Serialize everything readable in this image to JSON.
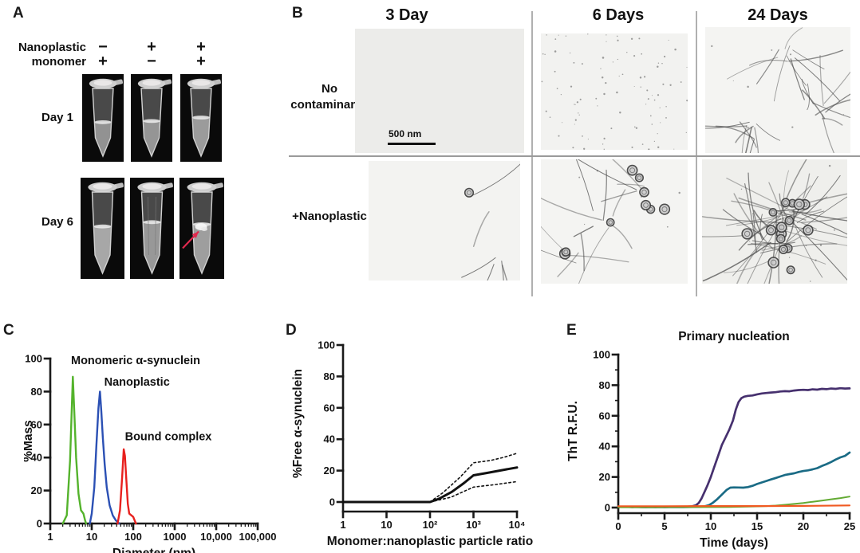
{
  "figure": {
    "panel_a_label": "A",
    "panel_b_label": "B",
    "panel_c_label": "C",
    "panel_d_label": "D",
    "panel_e_label": "E"
  },
  "panel_a": {
    "row1_label": "Nanoplastic",
    "row2_label": "monomer",
    "signs": [
      [
        "−",
        "+"
      ],
      [
        "+",
        "−"
      ],
      [
        "+",
        "+"
      ]
    ],
    "day1_label": "Day 1",
    "day6_label": "Day 6",
    "arrow_color": "#e0294e",
    "tubes": {
      "day1": [
        {
          "fill": 0.42,
          "turbidity": 0.1
        },
        {
          "fill": 0.44,
          "turbidity": 0.15
        },
        {
          "fill": 0.5,
          "turbidity": 0.25
        }
      ],
      "day6": [
        {
          "fill": 0.52,
          "turbidity": 0.45
        },
        {
          "fill": 0.58,
          "turbidity": 0.2,
          "striations": true
        },
        {
          "fill": 0.55,
          "turbidity": 0.3,
          "aggregate": true,
          "arrow": true
        }
      ]
    }
  },
  "panel_b": {
    "col_headers": [
      "3 Day",
      "6 Days",
      "24  Days"
    ],
    "row1_header_line1": "No",
    "row1_header_line2": "contaminants",
    "row2_header": "+Nanoplastic",
    "scale_bar_label": "500 nm",
    "micrographs": {
      "r1c1": {
        "bg": "#ececea",
        "fibrils": 0,
        "spheres": 0,
        "specks": 0,
        "clusters": 0,
        "seed": 11
      },
      "r1c2": {
        "bg": "#f2f2f0",
        "fibrils": 0,
        "spheres": 0,
        "specks": 95,
        "clusters": 0,
        "seed": 22
      },
      "r1c3": {
        "bg": "#f4f4f2",
        "fibrils": 30,
        "spheres": 0,
        "specks": 8,
        "clusters": 3,
        "seed": 33
      },
      "r2c1": {
        "bg": "#f3f3f1",
        "fibrils": 6,
        "spheres": 1,
        "specks": 0,
        "clusters": 2,
        "seed": 47
      },
      "r2c2": {
        "bg": "#f4f4f2",
        "fibrils": 16,
        "spheres": 9,
        "specks": 6,
        "clusters": 3,
        "seed": 55
      },
      "r2c3": {
        "bg": "#efefec",
        "fibrils": 52,
        "spheres": 16,
        "specks": 10,
        "clusters": 5,
        "seed": 66
      }
    }
  },
  "chart_data": [
    {
      "id": "dls-size-distribution",
      "type": "line",
      "xscale": "log",
      "xlim": [
        1,
        100000
      ],
      "ylim": [
        0,
        100
      ],
      "yticks": [
        0,
        20,
        40,
        60,
        80,
        100
      ],
      "xtick_values": [
        1,
        10,
        100,
        1000,
        10000,
        100000
      ],
      "xtick_labels": [
        "1",
        "10",
        "100",
        "1000",
        "10,000",
        "100,000"
      ],
      "xlabel": "Diameter (nm)",
      "ylabel": "%Mass",
      "grid": false,
      "series": [
        {
          "name": "Monomeric α-synuclein",
          "color": "#54b32c",
          "width": 2.4,
          "points": [
            [
              2,
              0
            ],
            [
              2.5,
              5
            ],
            [
              3,
              38
            ],
            [
              3.3,
              70
            ],
            [
              3.5,
              89
            ],
            [
              3.8,
              68
            ],
            [
              4.2,
              40
            ],
            [
              4.8,
              18
            ],
            [
              5.5,
              8
            ],
            [
              6.3,
              6
            ],
            [
              6.9,
              2
            ],
            [
              7.3,
              0
            ]
          ]
        },
        {
          "name": "Nanoplastic",
          "color": "#2b50b4",
          "width": 2.4,
          "points": [
            [
              9,
              0
            ],
            [
              10,
              6
            ],
            [
              11.5,
              22
            ],
            [
              13,
              48
            ],
            [
              14.5,
              70
            ],
            [
              15.8,
              80
            ],
            [
              17,
              68
            ],
            [
              18.5,
              52
            ],
            [
              20.5,
              36
            ],
            [
              23,
              22
            ],
            [
              27,
              11
            ],
            [
              32,
              5
            ],
            [
              38,
              2
            ],
            [
              46,
              0
            ]
          ]
        },
        {
          "name": "Bound complex",
          "color": "#e8211e",
          "width": 2.4,
          "points": [
            [
              42,
              0
            ],
            [
              48,
              8
            ],
            [
              54,
              28
            ],
            [
              59,
              45
            ],
            [
              63,
              41
            ],
            [
              68,
              27
            ],
            [
              74,
              12
            ],
            [
              80,
              6
            ],
            [
              90,
              5
            ],
            [
              100,
              4
            ],
            [
              108,
              2
            ],
            [
              116,
              0
            ]
          ]
        }
      ],
      "annotations": [
        {
          "text": "Monomeric α-synuclein",
          "color": "#54b32c",
          "fx": 0.1,
          "fy": 0.01
        },
        {
          "text": "Nanoplastic",
          "color": "#2b50b4",
          "fx": 0.26,
          "fy": 0.14
        },
        {
          "text": "Bound complex",
          "color": "#c8202e",
          "fx": 0.36,
          "fy": 0.47
        }
      ]
    },
    {
      "id": "free-synuclein-vs-ratio",
      "type": "line",
      "xscale": "log",
      "xlim": [
        1,
        10000
      ],
      "ylim": [
        0,
        100
      ],
      "yticks": [
        0,
        20,
        40,
        60,
        80,
        100
      ],
      "xtick_values": [
        1,
        10,
        100,
        1000,
        10000
      ],
      "xtick_labels": [
        "1",
        "10",
        "10²",
        "10³",
        "10⁴"
      ],
      "xlabel": "Monomer:nanoplastic particle ratio",
      "ylabel": "%Free α-synuclein",
      "grid": false,
      "series": [
        {
          "name": "mean",
          "color": "#111111",
          "width": 3,
          "points": [
            [
              1,
              0
            ],
            [
              10,
              0
            ],
            [
              100,
              0
            ],
            [
              160,
              2
            ],
            [
              320,
              6.5
            ],
            [
              600,
              12
            ],
            [
              1000,
              17
            ],
            [
              2000,
              18.5
            ],
            [
              5000,
              20.5
            ],
            [
              10000,
              22
            ]
          ]
        },
        {
          "name": "upper error (dotted)",
          "color": "#111111",
          "width": 1.6,
          "dash": "2.5 3.2",
          "points": [
            [
              100,
              0
            ],
            [
              200,
              6
            ],
            [
              500,
              16
            ],
            [
              1000,
              25
            ],
            [
              2500,
              26.5
            ],
            [
              5000,
              28.5
            ],
            [
              10000,
              31
            ]
          ]
        },
        {
          "name": "lower error (dotted)",
          "color": "#111111",
          "width": 1.6,
          "dash": "2.5 3.2",
          "points": [
            [
              100,
              0
            ],
            [
              300,
              3
            ],
            [
              1000,
              9.5
            ],
            [
              3000,
              11
            ],
            [
              10000,
              13
            ]
          ]
        }
      ]
    },
    {
      "id": "tht-kinetics",
      "type": "line",
      "title": "Primary nucleation",
      "xscale": "linear",
      "xlim": [
        0,
        25
      ],
      "ylim": [
        0,
        100
      ],
      "yticks": [
        0,
        20,
        40,
        60,
        80,
        100
      ],
      "y_minor_ticks": [
        10,
        30,
        50,
        70,
        90
      ],
      "xtick_values": [
        0,
        5,
        10,
        15,
        20,
        25
      ],
      "xtick_labels": [
        "0",
        "5",
        "10",
        "15",
        "20",
        "25"
      ],
      "x_minor_ticks": [
        2.5,
        7.5,
        12.5,
        17.5,
        22.5
      ],
      "xlabel": "Time (days)",
      "ylabel": "ThT R.F.U.",
      "grid": false,
      "series": [
        {
          "name": "purple condition",
          "color": "#46306e",
          "width": 2.7,
          "points": [
            [
              0,
              0.6
            ],
            [
              0.5,
              0.4
            ],
            [
              1,
              0.5
            ],
            [
              1.5,
              0.3
            ],
            [
              2,
              0.4
            ],
            [
              2.5,
              0.3
            ],
            [
              3,
              0.3
            ],
            [
              3.5,
              0.4
            ],
            [
              4,
              0.3
            ],
            [
              4.5,
              0.4
            ],
            [
              5,
              0.3
            ],
            [
              5.5,
              0.4
            ],
            [
              6,
              0.4
            ],
            [
              6.5,
              0.5
            ],
            [
              7,
              0.5
            ],
            [
              7.5,
              0.6
            ],
            [
              8,
              0.9
            ],
            [
              8.4,
              1.5
            ],
            [
              8.7,
              3
            ],
            [
              9,
              6
            ],
            [
              9.3,
              10
            ],
            [
              9.6,
              14
            ],
            [
              10,
              20
            ],
            [
              10.4,
              27
            ],
            [
              10.8,
              34
            ],
            [
              11.2,
              41
            ],
            [
              11.6,
              46
            ],
            [
              12,
              51
            ],
            [
              12.4,
              57
            ],
            [
              12.7,
              64
            ],
            [
              13,
              69
            ],
            [
              13.3,
              71.5
            ],
            [
              13.6,
              72.5
            ],
            [
              14,
              73
            ],
            [
              14.5,
              73.3
            ],
            [
              15,
              74
            ],
            [
              15.5,
              74.6
            ],
            [
              16,
              74.9
            ],
            [
              16.5,
              75.2
            ],
            [
              17,
              75.4
            ],
            [
              17.5,
              75.9
            ],
            [
              18,
              76.1
            ],
            [
              18.5,
              76
            ],
            [
              19,
              76.5
            ],
            [
              19.5,
              76.8
            ],
            [
              20,
              77
            ],
            [
              20.5,
              76.8
            ],
            [
              21,
              77.3
            ],
            [
              21.5,
              77.1
            ],
            [
              22,
              77.6
            ],
            [
              22.5,
              77.4
            ],
            [
              23,
              77.8
            ],
            [
              23.5,
              77.6
            ],
            [
              24,
              78
            ],
            [
              24.5,
              77.8
            ],
            [
              25,
              77.9
            ]
          ]
        },
        {
          "name": "teal condition",
          "color": "#1a6b85",
          "width": 2.7,
          "points": [
            [
              0,
              0.5
            ],
            [
              1,
              0.4
            ],
            [
              2,
              0.4
            ],
            [
              3,
              0.3
            ],
            [
              4,
              0.3
            ],
            [
              5,
              0.3
            ],
            [
              6,
              0.3
            ],
            [
              7,
              0.3
            ],
            [
              8,
              0.4
            ],
            [
              8.7,
              0.5
            ],
            [
              9.3,
              0.8
            ],
            [
              9.8,
              1.6
            ],
            [
              10.2,
              3
            ],
            [
              10.7,
              5.5
            ],
            [
              11.2,
              8.5
            ],
            [
              11.7,
              11.5
            ],
            [
              12.1,
              13
            ],
            [
              12.5,
              13.2
            ],
            [
              13,
              13.1
            ],
            [
              13.5,
              13
            ],
            [
              14,
              13.4
            ],
            [
              14.5,
              14.2
            ],
            [
              15,
              15.4
            ],
            [
              15.5,
              16.4
            ],
            [
              16,
              17.4
            ],
            [
              16.5,
              18.4
            ],
            [
              17,
              19.3
            ],
            [
              17.5,
              20.3
            ],
            [
              18,
              21.3
            ],
            [
              18.5,
              21.9
            ],
            [
              19,
              22.4
            ],
            [
              19.5,
              23.3
            ],
            [
              20,
              23.9
            ],
            [
              20.5,
              24.3
            ],
            [
              21,
              25
            ],
            [
              21.5,
              25.8
            ],
            [
              22,
              27.2
            ],
            [
              22.5,
              28.4
            ],
            [
              23,
              29.8
            ],
            [
              23.5,
              31.4
            ],
            [
              24,
              32.8
            ],
            [
              24.5,
              33.8
            ],
            [
              25,
              36
            ]
          ]
        },
        {
          "name": "green condition",
          "color": "#62aa32",
          "width": 2,
          "points": [
            [
              0,
              0.2
            ],
            [
              2,
              0.2
            ],
            [
              4,
              0.2
            ],
            [
              6,
              0.3
            ],
            [
              8,
              0.3
            ],
            [
              10,
              0.3
            ],
            [
              12,
              0.4
            ],
            [
              14,
              0.6
            ],
            [
              15,
              0.8
            ],
            [
              16,
              1
            ],
            [
              17,
              1.3
            ],
            [
              18,
              1.8
            ],
            [
              19,
              2.4
            ],
            [
              20,
              3
            ],
            [
              21,
              3.8
            ],
            [
              22,
              4.6
            ],
            [
              23,
              5.4
            ],
            [
              24,
              6.2
            ],
            [
              25,
              7.2
            ]
          ]
        },
        {
          "name": "orange condition",
          "color": "#f05a22",
          "width": 2.2,
          "points": [
            [
              0,
              0.9
            ],
            [
              5,
              0.9
            ],
            [
              10,
              1
            ],
            [
              15,
              1
            ],
            [
              20,
              1.1
            ],
            [
              25,
              1.4
            ]
          ]
        }
      ]
    }
  ]
}
